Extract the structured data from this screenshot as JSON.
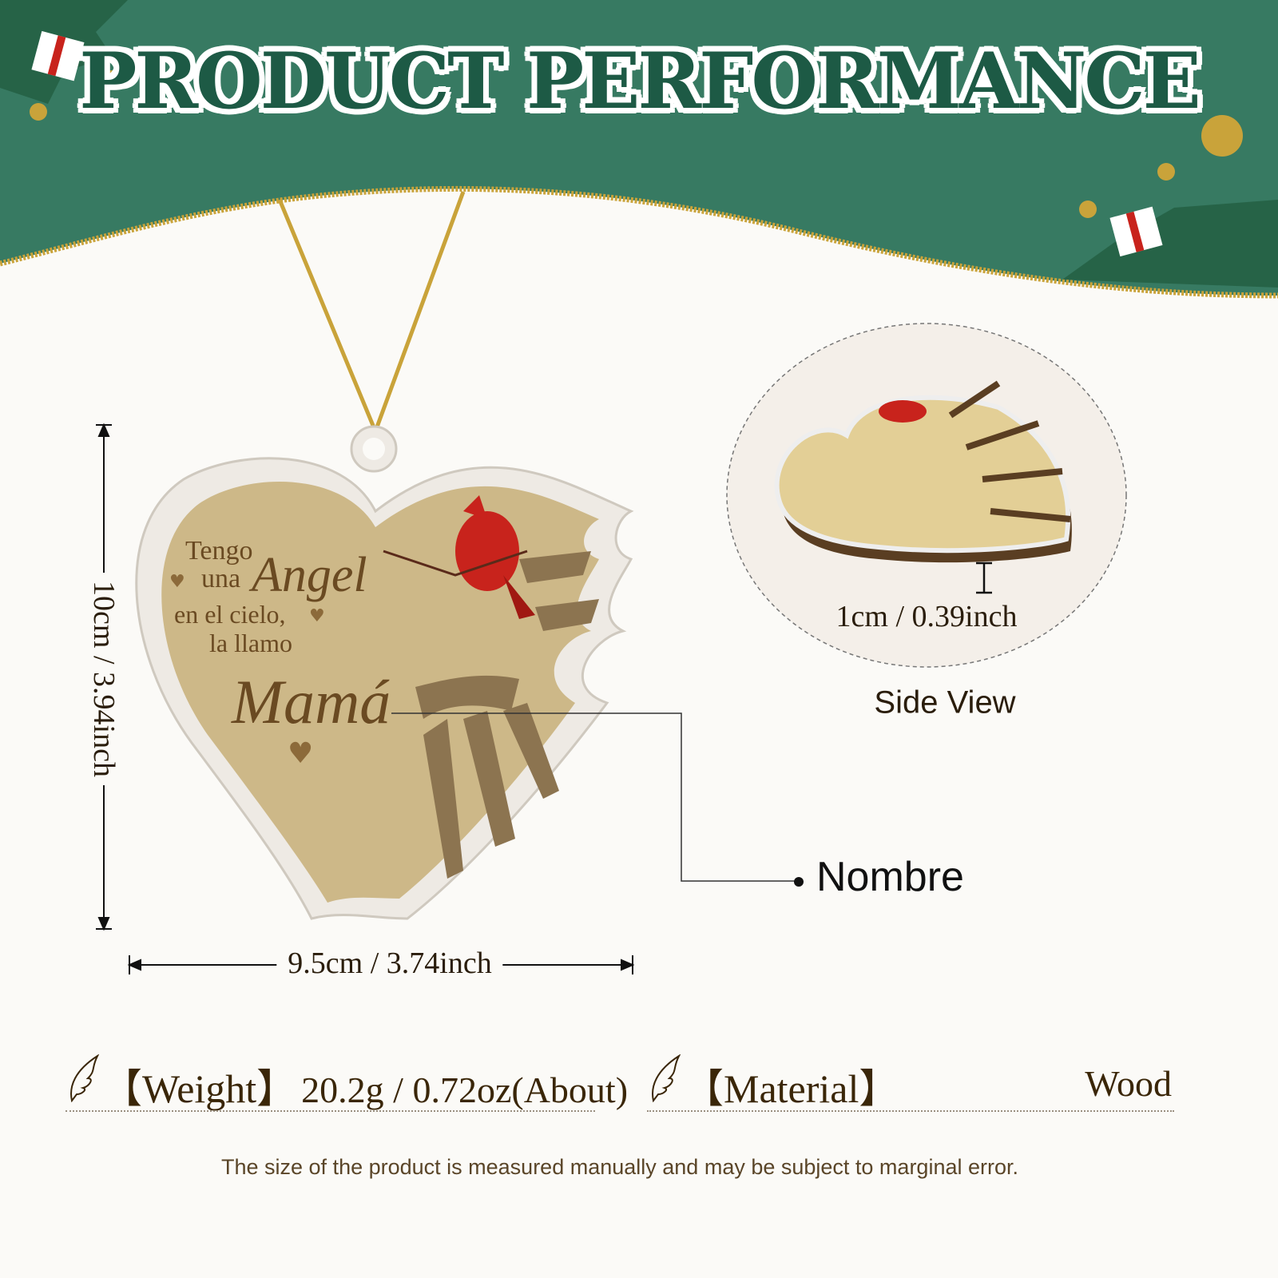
{
  "header": {
    "title": "PRODUCT PERFORMANCE"
  },
  "colors": {
    "banner_green": "#377a62",
    "title_green": "#1d5a45",
    "gold": "#c9a33a",
    "text_brown": "#3a2608",
    "cardinal_red": "#c8231c"
  },
  "product": {
    "engraving": {
      "line1": "Tengo",
      "line2": "una",
      "line3": "Angel",
      "line4": "en el cielo,",
      "line5": "la llamo",
      "line6": "Mamá"
    },
    "height_label": "10cm / 3.94inch",
    "width_label": "9.5cm / 3.74inch",
    "callout_label": "Nombre"
  },
  "side_view": {
    "thickness_label": "1cm / 0.39inch",
    "title": "Side View"
  },
  "specs": {
    "weight": {
      "label": "【Weight】",
      "value": "20.2g / 0.72oz(About)",
      "icon": "wing-icon"
    },
    "material": {
      "label": "【Material】",
      "value": "Wood",
      "icon": "wing-icon"
    }
  },
  "footnote": "The size of the product is measured manually and may be subject to marginal error."
}
